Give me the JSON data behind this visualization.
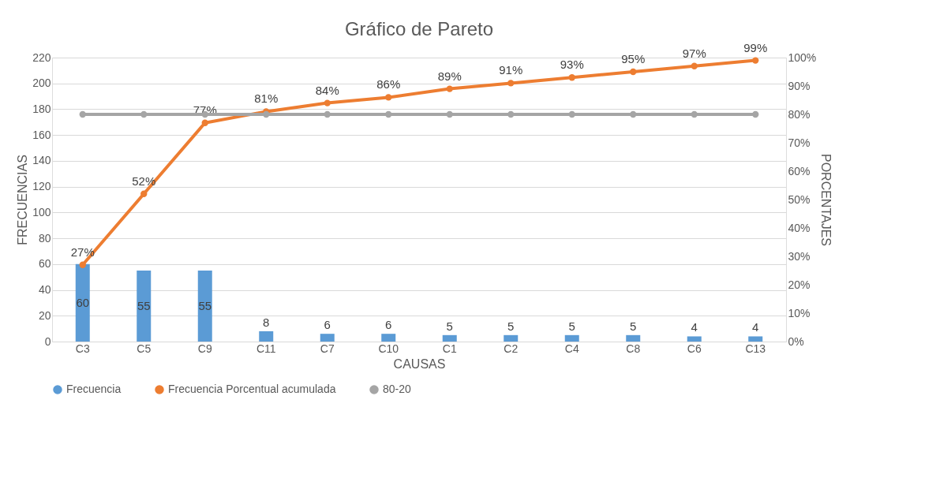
{
  "chart_data": {
    "type": "bar",
    "title": "Gráfico de Pareto",
    "xlabel": "CAUSAS",
    "ylabel": "FRECUENCIAS",
    "y2label": "PORCENTAJES",
    "categories": [
      "C3",
      "C5",
      "C9",
      "C11",
      "C7",
      "C10",
      "C1",
      "C2",
      "C4",
      "C8",
      "C6",
      "C13"
    ],
    "series": [
      {
        "name": "Frecuencia",
        "color": "#5b9bd5",
        "values": [
          60,
          55,
          55,
          8,
          6,
          6,
          5,
          5,
          5,
          5,
          4,
          4
        ],
        "value_labels": [
          "60",
          "55",
          "55",
          "8",
          "6",
          "6",
          "5",
          "5",
          "5",
          "5",
          "4",
          "4"
        ]
      },
      {
        "name": "Frecuencia Porcentual acumulada",
        "type": "line",
        "axis": "y2",
        "marker": "circle",
        "color": "#ed7d31",
        "values": [
          27,
          52,
          77,
          81,
          84,
          86,
          89,
          91,
          93,
          95,
          97,
          99
        ],
        "value_labels": [
          "27%",
          "52%",
          "77%",
          "81%",
          "84%",
          "86%",
          "89%",
          "91%",
          "93%",
          "95%",
          "97%",
          "99%"
        ]
      },
      {
        "name": "80-20",
        "type": "line",
        "axis": "y2",
        "marker": "circle",
        "color": "#a5a5a5",
        "values": [
          80,
          80,
          80,
          80,
          80,
          80,
          80,
          80,
          80,
          80,
          80,
          80
        ]
      }
    ],
    "ylim": [
      0,
      220
    ],
    "yticks": [
      0,
      20,
      40,
      60,
      80,
      100,
      120,
      140,
      160,
      180,
      200,
      220
    ],
    "y2lim": [
      0,
      100
    ],
    "y2ticks": [
      {
        "value": 0,
        "label": "0%"
      },
      {
        "value": 10,
        "label": "10%"
      },
      {
        "value": 20,
        "label": "20%"
      },
      {
        "value": 30,
        "label": "30%"
      },
      {
        "value": 40,
        "label": "40%"
      },
      {
        "value": 50,
        "label": "50%"
      },
      {
        "value": 60,
        "label": "60%"
      },
      {
        "value": 70,
        "label": "70%"
      },
      {
        "value": 80,
        "label": "80%"
      },
      {
        "value": 90,
        "label": "90%"
      },
      {
        "value": 100,
        "label": "100%"
      }
    ],
    "grid": "y",
    "legend": "bottom"
  }
}
